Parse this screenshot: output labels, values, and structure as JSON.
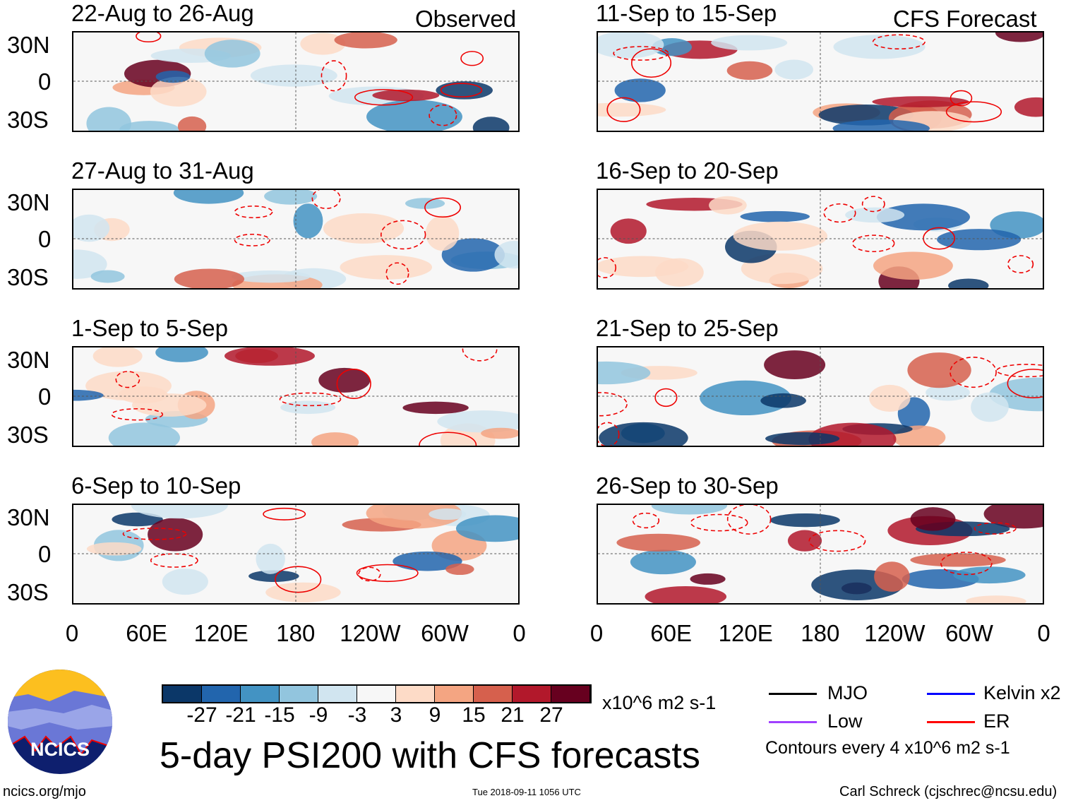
{
  "header": {
    "observed_label": "Observed",
    "forecast_label": "CFS Forecast"
  },
  "chart_data": {
    "type": "heatmap",
    "title": "5-day PSI200 with CFS forecasts",
    "variable": "PSI200 anomaly",
    "units": "x10^6 m2 s-1",
    "observed_panels": [
      "22-Aug to 26-Aug",
      "27-Aug to 31-Aug",
      "1-Sep to 5-Sep",
      "6-Sep to 10-Sep"
    ],
    "forecast_panels": [
      "11-Sep to 15-Sep",
      "16-Sep to 20-Sep",
      "21-Sep to 25-Sep",
      "26-Sep to 30-Sep"
    ],
    "lat_ticks": [
      "30N",
      "0",
      "30S"
    ],
    "lon_ticks": [
      "0",
      "60E",
      "120E",
      "180",
      "120W",
      "60W",
      "0"
    ],
    "colorbar": {
      "ticks": [
        "-27",
        "-21",
        "-15",
        "-9",
        "-3",
        "3",
        "9",
        "15",
        "21",
        "27"
      ],
      "colors": [
        "#0b3768",
        "#2265ad",
        "#4393c3",
        "#92c5de",
        "#d1e5f0",
        "#f7f7f7",
        "#fddbc7",
        "#f4a582",
        "#d6604d",
        "#b2182b",
        "#67001f"
      ]
    },
    "contour_legend": [
      {
        "label": "MJO",
        "color": "#000000"
      },
      {
        "label": "Kelvin x2",
        "color": "#0000ff"
      },
      {
        "label": "Low",
        "color": "#a040ff"
      },
      {
        "label": "ER",
        "color": "#ff0000"
      }
    ],
    "contour_note": "Contours every 4 x10^6 m2 s-1"
  },
  "footer": {
    "logo_text": "NCICS",
    "url": "ncics.org/mjo",
    "timestamp": "Tue 2018-09-11 1056 UTC",
    "author": "Carl Schreck (cjschrec@ncsu.edu)"
  }
}
